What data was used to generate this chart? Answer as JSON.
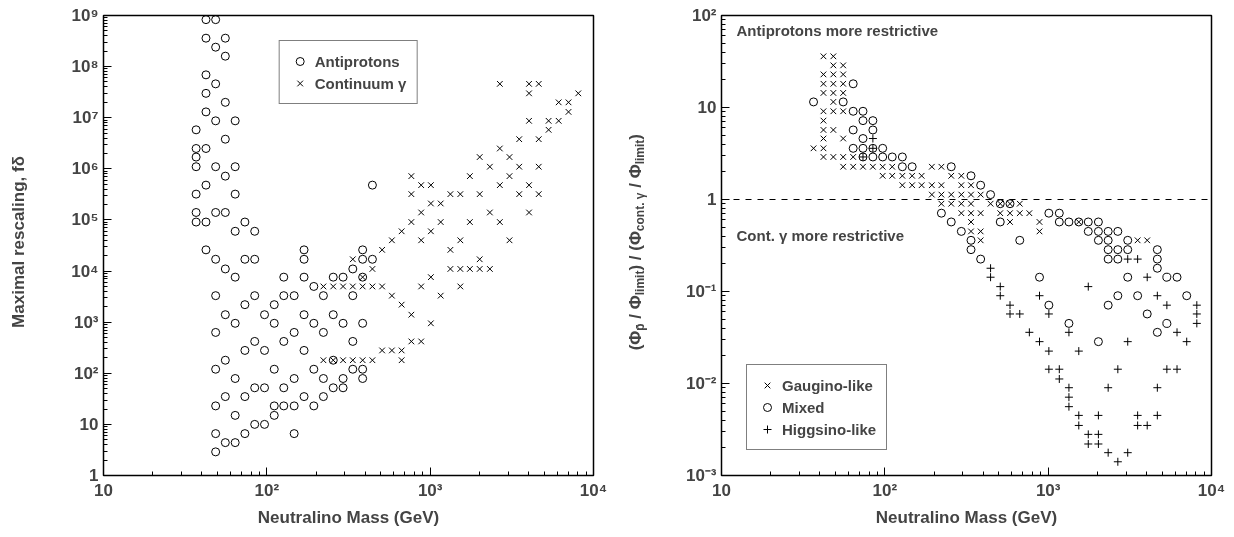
{
  "chart_data": [
    {
      "type": "scatter",
      "xlabel": "Neutralino Mass (GeV)",
      "ylabel": "Maximal rescaling, fδ",
      "log": "xy",
      "grid": false,
      "legend": "top",
      "xlim": [
        10,
        10000
      ],
      "ylim": [
        1,
        1000000000
      ],
      "xticks": [
        {
          "value": 10,
          "label": "10"
        },
        {
          "value": 100,
          "label": "10²"
        },
        {
          "value": 1000,
          "label": "10³"
        },
        {
          "value": 10000,
          "label": "10⁴"
        }
      ],
      "yticks": [
        {
          "value": 1,
          "label": "1"
        },
        {
          "value": 10,
          "label": "10"
        },
        {
          "value": 100,
          "label": "10²"
        },
        {
          "value": 1000,
          "label": "10³"
        },
        {
          "value": 10000,
          "label": "10⁴"
        },
        {
          "value": 100000,
          "label": "10⁵"
        },
        {
          "value": 1000000,
          "label": "10⁶"
        },
        {
          "value": 10000000,
          "label": "10⁷"
        },
        {
          "value": 100000000,
          "label": "10⁸"
        },
        {
          "value": 1000000000,
          "label": "10⁹"
        }
      ],
      "series": [
        {
          "name": "Antiprotons",
          "color": "#000000",
          "marker": "circle",
          "x": [
            36.9,
            36.9,
            36.9,
            36.9,
            36.9,
            36.9,
            36.9,
            42.4,
            42.4,
            42.4,
            42.4,
            42.4,
            42.4,
            42.4,
            42.4,
            42.4,
            48.6,
            48.6,
            48.6,
            48.6,
            48.6,
            48.6,
            48.6,
            48.6,
            48.6,
            48.6,
            48.6,
            48.6,
            48.6,
            55.7,
            55.7,
            55.7,
            55.7,
            55.7,
            55.7,
            55.7,
            55.7,
            55.7,
            55.7,
            55.7,
            64,
            64,
            64,
            64,
            64,
            64,
            64,
            64,
            64,
            73.4,
            73.4,
            73.4,
            73.4,
            73.4,
            73.4,
            84.3,
            84.3,
            84.3,
            84.3,
            84.3,
            84.3,
            96.8,
            96.8,
            96.8,
            96.8,
            111,
            111,
            111,
            111,
            111,
            127,
            127,
            127,
            127,
            127,
            147,
            147,
            147,
            147,
            147,
            169,
            169,
            169,
            169,
            169,
            169,
            194,
            194,
            194,
            194,
            222,
            222,
            222,
            222,
            255,
            255,
            255,
            255,
            293,
            293,
            293,
            293,
            336,
            336,
            336,
            336,
            386,
            386,
            386,
            386,
            386,
            386,
            443,
            443
          ],
          "values": [
            5800000,
            2500000,
            1700000,
            1100000,
            320000,
            140000,
            91000,
            830000000,
            360000000,
            69000000,
            30000000,
            13000000,
            2500000,
            480000,
            91000,
            26000,
            830000000,
            240000000,
            46000000,
            8700000,
            1100000,
            140000,
            17000,
            3300,
            630,
            120,
            23,
            6.6,
            2.9,
            360000000,
            160000000,
            20000000,
            3800000,
            720000,
            140000,
            11000,
            1400,
            180,
            35,
            4.4,
            8700000,
            1100000,
            320000,
            60000,
            7600,
            950,
            79,
            15,
            4.4,
            91000,
            17000,
            2200,
            280,
            35,
            6.6,
            60000,
            17000,
            3300,
            420,
            52,
            10,
            1400,
            280,
            52,
            10,
            2200,
            950,
            120,
            23,
            15,
            7600,
            3300,
            420,
            52,
            23,
            3300,
            630,
            79,
            23,
            6.6,
            26000,
            17000,
            7600,
            1400,
            280,
            35,
            5000,
            950,
            120,
            23,
            3300,
            630,
            79,
            35,
            7600,
            1400,
            180,
            52,
            7600,
            950,
            79,
            52,
            11000,
            3300,
            420,
            120,
            26000,
            17000,
            7600,
            950,
            120,
            79,
            480000,
            17000
          ]
        },
        {
          "name": "Continuum γ",
          "color": "#000000",
          "marker": "cross",
          "x": [
            222,
            222,
            255,
            255,
            293,
            293,
            336,
            336,
            336,
            386,
            386,
            386,
            443,
            443,
            443,
            508,
            508,
            508,
            583,
            583,
            583,
            669,
            669,
            669,
            669,
            767,
            767,
            767,
            767,
            767,
            881,
            881,
            881,
            881,
            881,
            1010,
            1010,
            1010,
            1010,
            1010,
            1160,
            1160,
            1160,
            1330,
            1330,
            1330,
            1530,
            1530,
            1530,
            1530,
            1750,
            1750,
            1750,
            2010,
            2010,
            2010,
            2010,
            2320,
            2320,
            2320,
            2670,
            2670,
            2670,
            2670,
            3060,
            3060,
            3060,
            3510,
            3510,
            3510,
            4030,
            4030,
            4030,
            4030,
            4030,
            4620,
            4620,
            4620,
            4620,
            5310,
            5310,
            6120,
            6120,
            7030,
            7030,
            8070
          ],
          "values": [
            5000,
            180,
            5000,
            180,
            5000,
            180,
            17000,
            5000,
            180,
            7600,
            5000,
            180,
            11000,
            5000,
            180,
            26000,
            5000,
            280,
            40000,
            3300,
            280,
            60000,
            2200,
            280,
            180,
            720000,
            320000,
            91000,
            1400,
            420,
            480000,
            140000,
            40000,
            5000,
            420,
            480000,
            210000,
            60000,
            7600,
            950,
            210000,
            91000,
            3300,
            320000,
            26000,
            11000,
            320000,
            40000,
            11000,
            5000,
            720000,
            91000,
            11000,
            1700000,
            320000,
            17000,
            11000,
            1100000,
            140000,
            11000,
            46000000,
            2500000,
            480000,
            91000,
            1700000,
            720000,
            40000,
            3800000,
            1100000,
            320000,
            46000000,
            30000000,
            8700000,
            480000,
            140000,
            46000000,
            3800000,
            1100000,
            320000,
            8700000,
            5800000,
            20000000,
            8700000,
            20000000,
            13000000,
            30000000
          ]
        }
      ]
    },
    {
      "type": "scatter",
      "xlabel": "Neutralino Mass (GeV)",
      "ylabel": "(Φ$_{p̄}$ / Φ$_{limit}$) / (Φ$_{cont. γ}$ / Φ$_{limit}$)",
      "log": "xy",
      "grid": false,
      "legend": "bottom left",
      "xlim": [
        10,
        10000
      ],
      "ylim": [
        0.001,
        100
      ],
      "xticks": [
        {
          "value": 10,
          "label": "10"
        },
        {
          "value": 100,
          "label": "10²"
        },
        {
          "value": 1000,
          "label": "10³"
        },
        {
          "value": 10000,
          "label": "10⁴"
        }
      ],
      "yticks": [
        {
          "value": 0.001,
          "label": "10⁻³"
        },
        {
          "value": 0.01,
          "label": "10⁻²"
        },
        {
          "value": 0.1,
          "label": "10⁻¹"
        },
        {
          "value": 1,
          "label": "1"
        },
        {
          "value": 10,
          "label": "10"
        },
        {
          "value": 100,
          "label": "10²"
        }
      ],
      "ref_lines": [
        {
          "axis": "y",
          "value": 1,
          "line_style": "dashed",
          "color": "#000000"
        }
      ],
      "annotations": [
        "Antiprotons more restrictive",
        "Cont. γ more restrictive"
      ],
      "series": [
        {
          "name": "Gaugino-like",
          "color": "#000000",
          "marker": "cross",
          "x": [
            36.6,
            42.1,
            42.1,
            42.1,
            42.1,
            42.1,
            42.1,
            42.1,
            42.1,
            42.1,
            42.1,
            48.4,
            48.4,
            48.4,
            48.4,
            48.4,
            48.4,
            48.4,
            48.4,
            48.4,
            55.6,
            55.6,
            55.6,
            55.6,
            55.6,
            55.6,
            55.6,
            55.6,
            64,
            64,
            73.5,
            84.5,
            97,
            97,
            111,
            111,
            128,
            128,
            147,
            147,
            168,
            168,
            194,
            194,
            194,
            222,
            222,
            222,
            222,
            255,
            255,
            255,
            294,
            294,
            294,
            294,
            294,
            337,
            337,
            337,
            337,
            337,
            337,
            386,
            386,
            386,
            386,
            444,
            509,
            509,
            584,
            584,
            584,
            670,
            670,
            767,
            885,
            885,
            1540,
            3530,
            4040
          ],
          "values": [
            3.6,
            36,
            22.9,
            18.1,
            14.4,
            9.1,
            7.2,
            5.7,
            4.6,
            3.6,
            2.9,
            36,
            28.7,
            22.9,
            18.1,
            14.4,
            11.5,
            9.1,
            5.7,
            2.9,
            28.7,
            22.9,
            18.1,
            14.4,
            9.1,
            4.6,
            2.9,
            2.27,
            2.9,
            2.27,
            2.27,
            2.27,
            2.27,
            1.81,
            2.27,
            1.81,
            1.81,
            1.43,
            1.81,
            1.43,
            1.81,
            1.43,
            2.27,
            1.43,
            1.13,
            2.27,
            1.43,
            1.13,
            0.9,
            1.81,
            1.13,
            0.9,
            1.81,
            1.43,
            1.13,
            0.9,
            0.71,
            1.43,
            1.13,
            0.9,
            0.71,
            0.57,
            0.45,
            1.13,
            0.71,
            0.45,
            0.36,
            0.9,
            0.9,
            0.71,
            0.9,
            0.71,
            0.57,
            0.9,
            0.71,
            0.71,
            0.57,
            0.45,
            0.57,
            0.36,
            0.36
          ]
        },
        {
          "name": "Mixed",
          "color": "#000000",
          "marker": "circle",
          "x": [
            36.6,
            55.6,
            64,
            64,
            64,
            64,
            73.5,
            73.5,
            73.5,
            73.5,
            73.5,
            84.5,
            84.5,
            84.5,
            84.5,
            97,
            97,
            111,
            128,
            128,
            147,
            255,
            337,
            386,
            444,
            509,
            584,
            222,
            255,
            294,
            337,
            337,
            386,
            509,
            670,
            885,
            1010,
            1010,
            1170,
            1170,
            1340,
            1340,
            1540,
            1760,
            1760,
            2030,
            2030,
            2030,
            2030,
            2330,
            2330,
            2330,
            2330,
            2330,
            2670,
            2670,
            2670,
            2670,
            3070,
            3070,
            3070,
            3530,
            4040,
            4660,
            4660,
            4660,
            4660,
            5330,
            5330,
            6150,
            7050
          ],
          "values": [
            11.5,
            11.5,
            18.1,
            9.1,
            5.7,
            3.6,
            9.1,
            7.2,
            4.6,
            3.6,
            2.9,
            7.2,
            5.7,
            3.6,
            2.9,
            3.6,
            2.9,
            2.9,
            2.9,
            2.27,
            2.27,
            2.27,
            1.81,
            1.43,
            1.13,
            0.9,
            0.9,
            0.71,
            0.57,
            0.45,
            0.36,
            0.285,
            0.225,
            0.57,
            0.36,
            0.143,
            0.71,
            0.071,
            0.71,
            0.57,
            0.57,
            0.045,
            0.57,
            0.57,
            0.45,
            0.57,
            0.45,
            0.36,
            0.0285,
            0.45,
            0.36,
            0.285,
            0.225,
            0.071,
            0.45,
            0.285,
            0.225,
            0.09,
            0.36,
            0.285,
            0.143,
            0.09,
            0.057,
            0.285,
            0.225,
            0.179,
            0.036,
            0.143,
            0.045,
            0.143,
            0.09
          ]
        },
        {
          "name": "Higgsino-like",
          "color": "#000000",
          "marker": "plus",
          "x": [
            84.5,
            84.5,
            73.5,
            444,
            444,
            509,
            509,
            584,
            584,
            670,
            767,
            885,
            885,
            1010,
            1010,
            1010,
            1170,
            1170,
            1340,
            1340,
            1340,
            1340,
            1540,
            1540,
            1540,
            1760,
            1760,
            1760,
            2030,
            2030,
            2030,
            2330,
            2330,
            2670,
            2670,
            3070,
            3070,
            3070,
            3530,
            3530,
            3530,
            4040,
            4040,
            4660,
            4660,
            4660,
            5330,
            5330,
            6150,
            6150,
            7050,
            8130,
            8130,
            8130
          ],
          "values": [
            4.6,
            3.6,
            2.9,
            0.179,
            0.143,
            0.113,
            0.09,
            0.071,
            0.057,
            0.057,
            0.036,
            0.0285,
            0.09,
            0.0225,
            0.0143,
            0.057,
            0.0143,
            0.0112,
            0.009,
            0.0071,
            0.0056,
            0.036,
            0.0045,
            0.0035,
            0.0225,
            0.0028,
            0.0022,
            0.113,
            0.0028,
            0.0022,
            0.0045,
            0.00177,
            0.009,
            0.00141,
            0.0143,
            0.00177,
            0.0285,
            0.225,
            0.0045,
            0.0035,
            0.225,
            0.0035,
            0.143,
            0.0045,
            0.009,
            0.09,
            0.071,
            0.0143,
            0.0143,
            0.036,
            0.0285,
            0.071,
            0.057,
            0.045
          ]
        }
      ]
    }
  ]
}
